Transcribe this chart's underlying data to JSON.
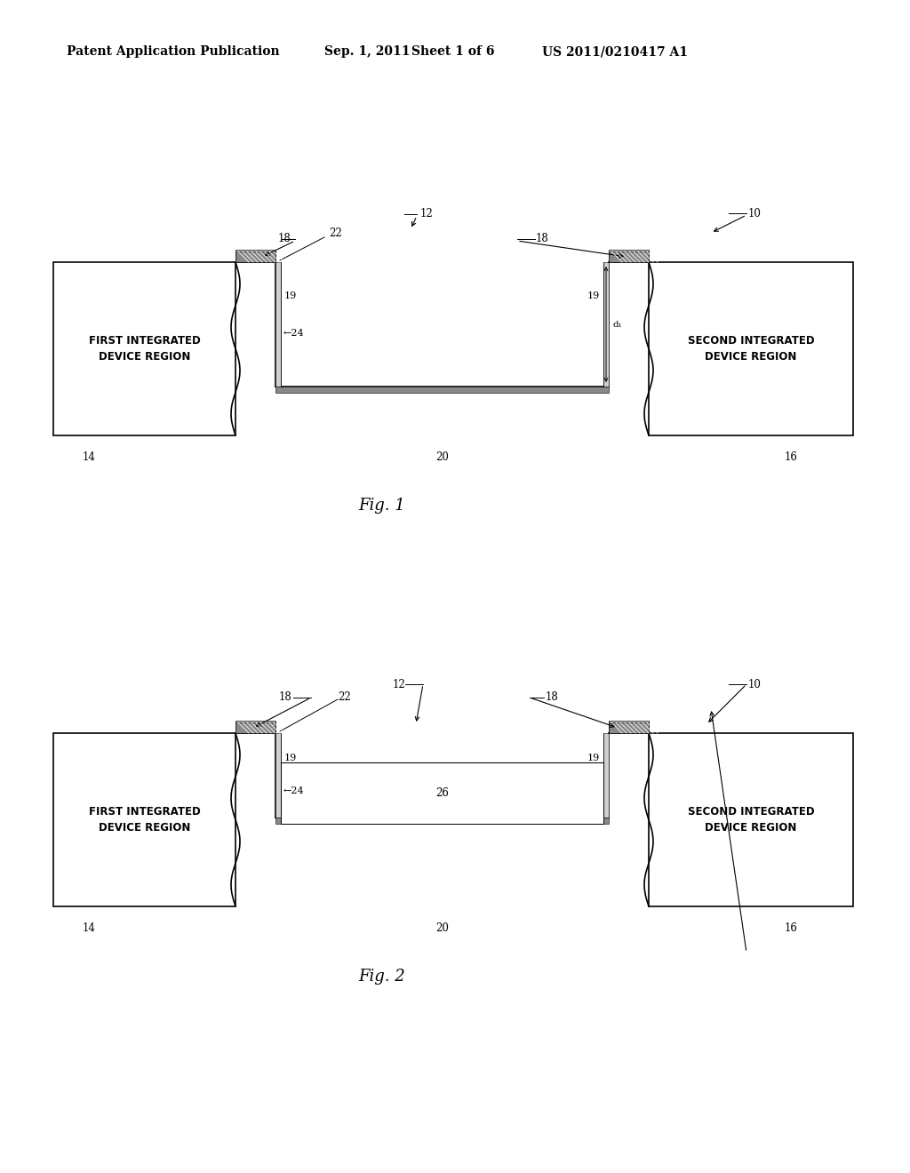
{
  "bg_color": "#ffffff",
  "line_color": "#000000",
  "header_text": "Patent Application Publication",
  "header_date": "Sep. 1, 2011",
  "header_sheet": "Sheet 1 of 6",
  "header_patent": "US 2011/0210417 A1",
  "fig1_label": "Fig. 1",
  "fig2_label": "Fig. 2",
  "lw": 1.2,
  "thin_lw": 0.7,
  "gray_light": "#d0d0d0",
  "gray_dark": "#888888",
  "gray_mid": "#b0b0b0"
}
